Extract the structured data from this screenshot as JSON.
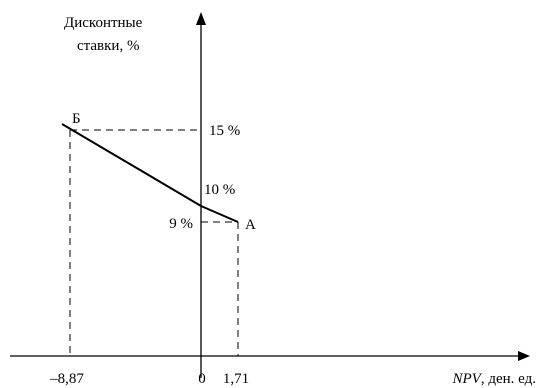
{
  "chart_data": {
    "type": "line",
    "ylabel_line1": "Дисконтные",
    "ylabel_line2": "ставки, %",
    "xlabel_italic": "NPV",
    "xlabel_rest": ", ден. ед.",
    "series": [
      {
        "points": [
          {
            "x": -8.87,
            "y": 15
          },
          {
            "x": 0,
            "y": 10
          },
          {
            "x": 1.71,
            "y": 9
          }
        ]
      }
    ],
    "point_labels": {
      "A": "А",
      "B": "Б"
    },
    "x_ticks": [
      "–8,87",
      "0",
      "1,71"
    ],
    "y_ticks": [
      "15 %",
      "10 %",
      "9 %"
    ]
  }
}
